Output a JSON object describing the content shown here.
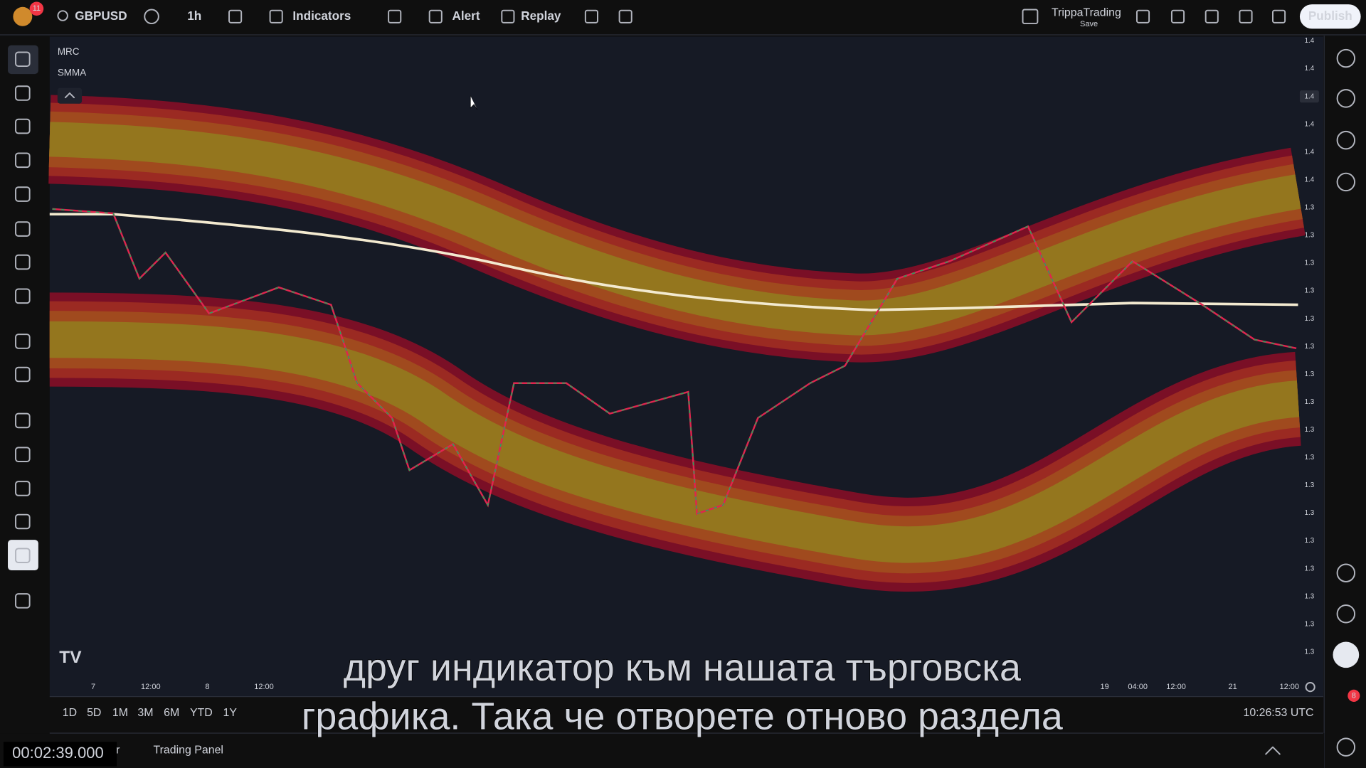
{
  "top_bar": {
    "notification_count": "11",
    "symbol": "GBPUSD",
    "interval": "1h",
    "indicators": "Indicators",
    "alert": "Alert",
    "replay": "Replay",
    "account": "TrippaTrading",
    "save": "Save",
    "publish": "Publish"
  },
  "legend": [
    "MRC",
    "SMMA"
  ],
  "price_axis": [
    "1.4",
    "1.4",
    "1.4",
    "1.4",
    "1.4",
    "1.4",
    "1.3",
    "1.3",
    "1.3",
    "1.3",
    "1.3",
    "1.3",
    "1.3",
    "1.3",
    "1.3",
    "1.3",
    "1.3",
    "1.3",
    "1.3",
    "1.3",
    "1.3",
    "1.3",
    "1.3"
  ],
  "time_axis": [
    "7",
    "12:00",
    "8",
    "12:00",
    "19",
    "04:00",
    "12:00",
    "21",
    "12:00"
  ],
  "range_buttons": [
    "1D",
    "5D",
    "1M",
    "3M",
    "6M",
    "YTD",
    "1Y"
  ],
  "clock": "10:26:53 UTC",
  "bottom_panel": [
    "Pine Editor",
    "Trading Panel"
  ],
  "alerts_badge": "8",
  "subtitles": [
    "друг индикатор към нашата търговска",
    "графика. Така че отворете отново раздела"
  ],
  "timestamp": "00:02:39.000"
}
